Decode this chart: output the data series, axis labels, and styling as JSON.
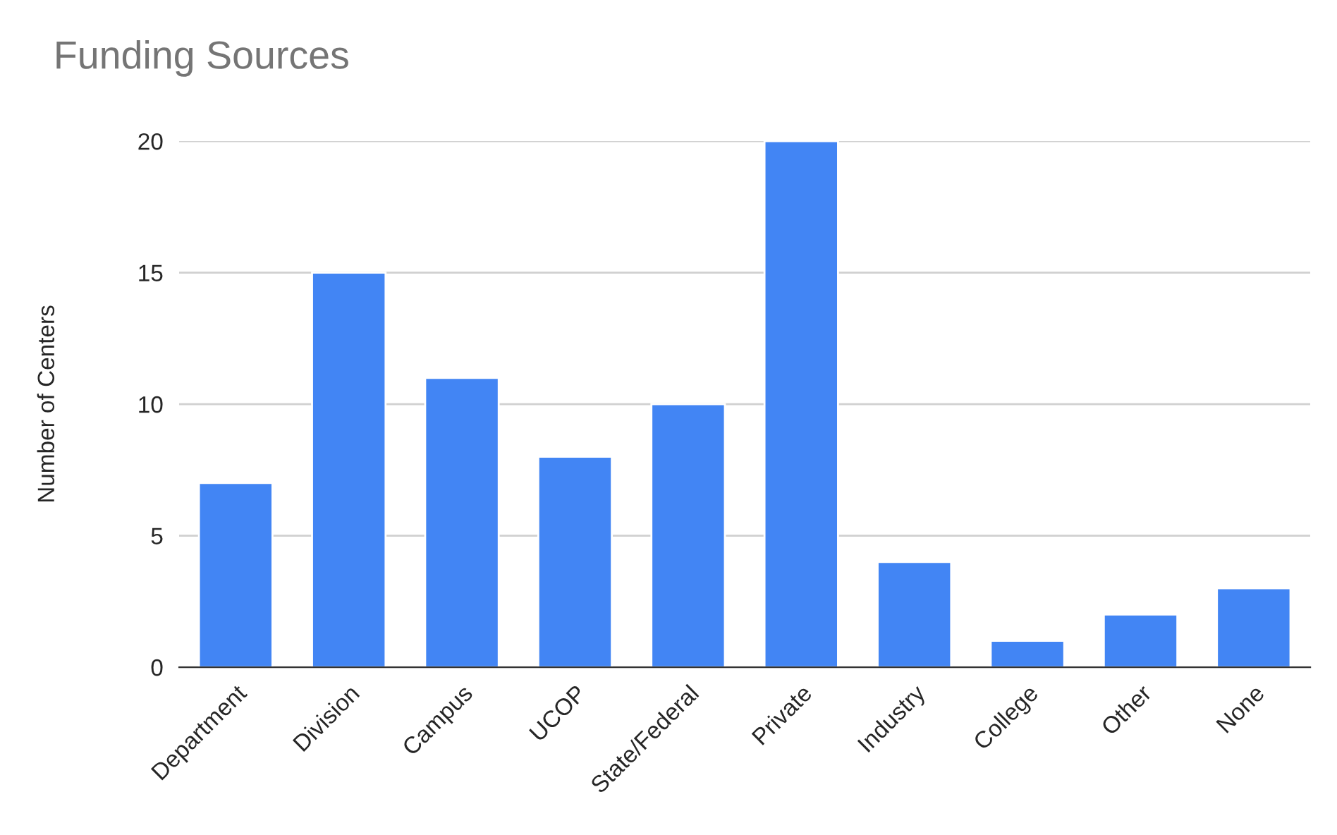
{
  "chart_data": {
    "type": "bar",
    "title": "Funding Sources",
    "ylabel": "Number of Centers",
    "categories": [
      "Department",
      "Division",
      "Campus",
      "UCOP",
      "State/Federal",
      "Private",
      "Industry",
      "College",
      "Other",
      "None"
    ],
    "values": [
      7,
      15,
      11,
      8,
      10,
      20,
      4,
      1,
      2,
      3
    ],
    "color": "#4285f4",
    "ylim": [
      0,
      20
    ],
    "yticks": [
      0,
      5,
      10,
      15,
      20
    ],
    "grid": "y"
  }
}
